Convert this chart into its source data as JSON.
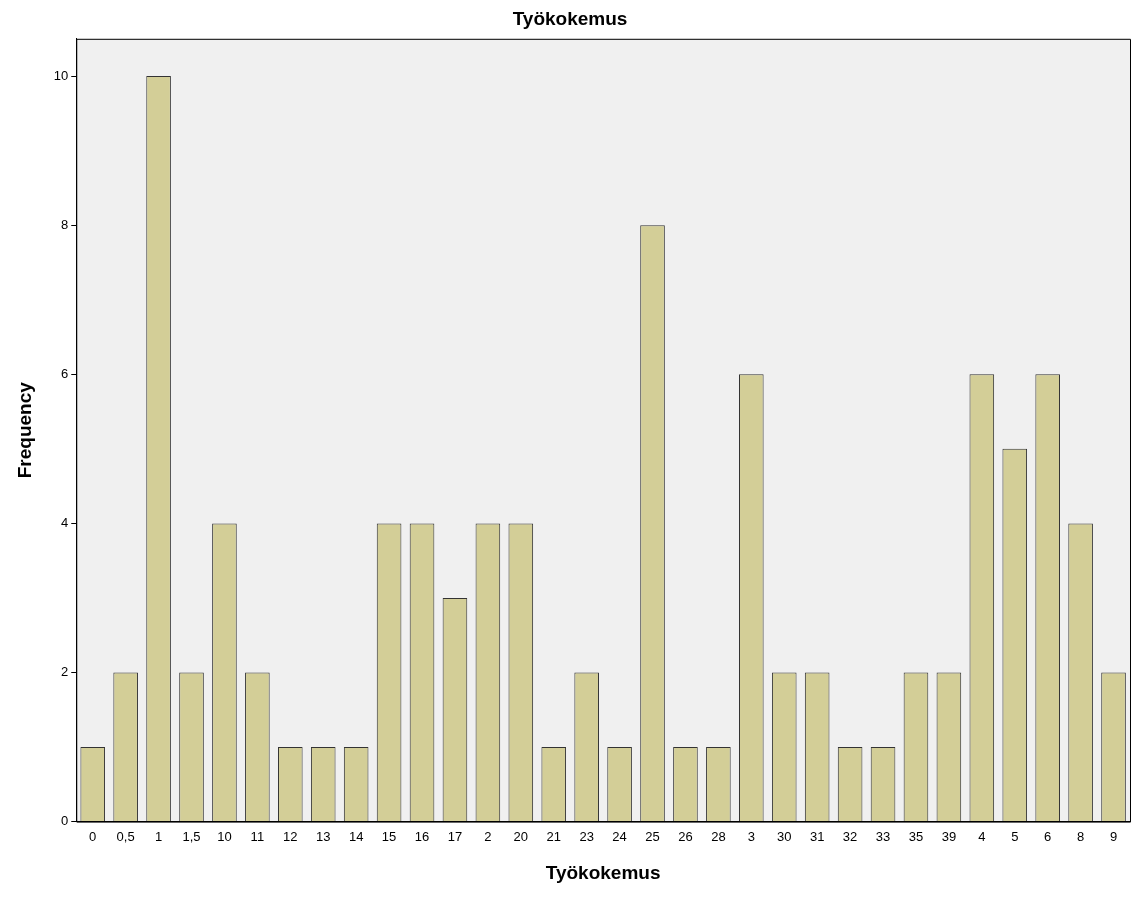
{
  "chart_data": {
    "type": "bar",
    "title": "Työkokemus",
    "xlabel": "Työkokemus",
    "ylabel": "Frequency",
    "categories": [
      "0",
      "0,5",
      "1",
      "1,5",
      "10",
      "11",
      "12",
      "13",
      "14",
      "15",
      "16",
      "17",
      "2",
      "20",
      "21",
      "23",
      "24",
      "25",
      "26",
      "28",
      "3",
      "30",
      "31",
      "32",
      "33",
      "35",
      "39",
      "4",
      "5",
      "6",
      "8",
      "9"
    ],
    "values": [
      1,
      2,
      10,
      2,
      4,
      2,
      1,
      1,
      1,
      4,
      4,
      3,
      4,
      4,
      1,
      2,
      1,
      8,
      1,
      1,
      6,
      2,
      2,
      1,
      1,
      2,
      2,
      6,
      5,
      6,
      4,
      2
    ],
    "color": "#d3ce97",
    "ylim": [
      0,
      10.5
    ],
    "yticks": [
      0,
      2,
      4,
      6,
      8,
      10
    ],
    "grid": false,
    "legend": false
  }
}
